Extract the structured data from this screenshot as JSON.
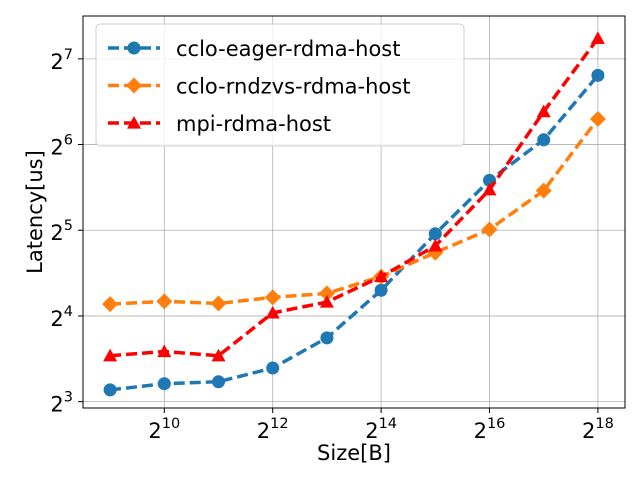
{
  "chart_data": {
    "type": "line",
    "title": "",
    "xlabel": "Size[B]",
    "ylabel": "Latency[us]",
    "x_scale": "log2",
    "y_scale": "log2",
    "x": [
      512,
      1024,
      2048,
      4096,
      8192,
      16384,
      32768,
      65536,
      131072,
      262144
    ],
    "xlim": [
      362,
      370727
    ],
    "ylim": [
      7.6,
      181
    ],
    "x_ticks": [
      {
        "base": "2",
        "exp": "10",
        "value": 1024
      },
      {
        "base": "2",
        "exp": "12",
        "value": 4096
      },
      {
        "base": "2",
        "exp": "14",
        "value": 16384
      },
      {
        "base": "2",
        "exp": "16",
        "value": 65536
      },
      {
        "base": "2",
        "exp": "18",
        "value": 262144
      }
    ],
    "y_ticks": [
      {
        "base": "2",
        "exp": "3",
        "value": 8
      },
      {
        "base": "2",
        "exp": "4",
        "value": 16
      },
      {
        "base": "2",
        "exp": "5",
        "value": 32
      },
      {
        "base": "2",
        "exp": "6",
        "value": 64
      },
      {
        "base": "2",
        "exp": "7",
        "value": 128
      }
    ],
    "grid": true,
    "legend_position": "top-left",
    "series": [
      {
        "name": "cclo-eager-rdma-host",
        "color": "#1f77b4",
        "marker": "circle",
        "values": [
          8.8,
          9.25,
          9.4,
          10.5,
          13.4,
          19.7,
          31.1,
          47.9,
          66.5,
          112
        ]
      },
      {
        "name": "cclo-rndzvs-rdma-host",
        "color": "#ff7f0e",
        "marker": "diamond",
        "values": [
          17.6,
          18.0,
          17.7,
          18.6,
          19.2,
          22.0,
          26.7,
          32.2,
          44.1,
          78.7
        ]
      },
      {
        "name": "mpi-rdma-host",
        "color": "#ff0000",
        "marker": "triangle",
        "values": [
          11.6,
          12.0,
          11.6,
          16.4,
          17.9,
          22.0,
          28.2,
          44.4,
          83.5,
          151
        ]
      }
    ]
  }
}
